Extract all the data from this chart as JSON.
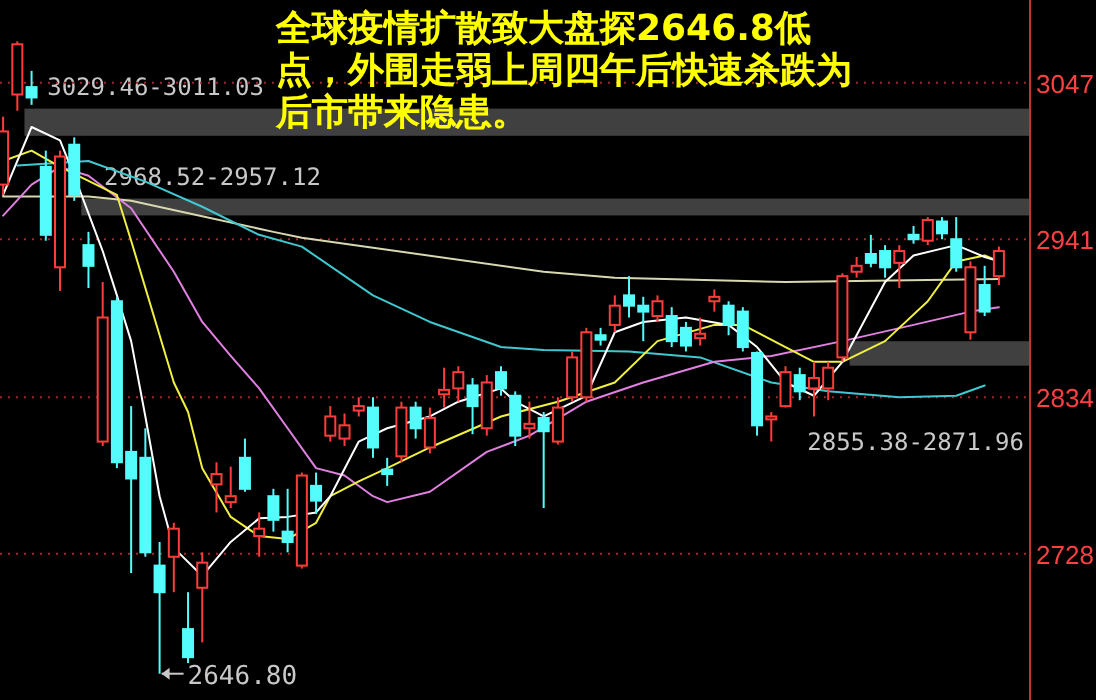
{
  "chart_data": {
    "type": "candlestick",
    "categories": [
      null,
      null,
      null,
      null,
      null,
      null,
      null,
      null,
      null,
      null,
      null,
      null,
      null,
      null,
      null,
      null,
      null,
      null,
      null,
      null,
      null,
      null,
      null,
      null,
      null,
      null,
      null,
      null,
      null,
      null,
      null,
      null,
      null,
      null,
      null,
      null,
      null,
      null,
      null,
      null,
      null,
      null,
      null,
      null,
      null,
      null,
      null,
      null,
      null,
      null,
      null,
      null,
      null,
      null,
      null,
      null,
      null,
      null,
      null,
      null,
      null,
      null,
      null,
      null,
      null,
      null,
      null,
      null,
      null,
      null,
      null
    ],
    "ohlc": [
      [
        2978,
        3024,
        2971,
        3014
      ],
      [
        3039,
        3075,
        3028,
        3073
      ],
      [
        3044,
        3055,
        3032,
        3037
      ],
      [
        2990,
        3001,
        2940,
        2944
      ],
      [
        2922,
        3001,
        2906,
        2997
      ],
      [
        3005,
        3010,
        2967,
        2971
      ],
      [
        2937,
        2946,
        2908,
        2923
      ],
      [
        2804,
        2912,
        2801,
        2888
      ],
      [
        2899,
        2902,
        2786,
        2790
      ],
      [
        2797,
        2828,
        2715,
        2779
      ],
      [
        2793,
        2813,
        2726,
        2729
      ],
      [
        2720,
        2736,
        2646.8,
        2702
      ],
      [
        2726,
        2749,
        2702,
        2745
      ],
      [
        2677,
        2702,
        2654,
        2658
      ],
      [
        2705,
        2729,
        2668,
        2722
      ],
      [
        2775,
        2790,
        2756,
        2782
      ],
      [
        2763,
        2787,
        2759,
        2767
      ],
      [
        2793,
        2806,
        2770,
        2772
      ],
      [
        2740,
        2756,
        2726,
        2745
      ],
      [
        2767,
        2772,
        2743,
        2751
      ],
      [
        2743,
        2772,
        2729,
        2736
      ],
      [
        2720,
        2783,
        2718,
        2781
      ],
      [
        2774,
        2783,
        2755,
        2764
      ],
      [
        2808,
        2828,
        2804,
        2821
      ],
      [
        2806,
        2823,
        2801,
        2815
      ],
      [
        2825,
        2834,
        2821,
        2828
      ],
      [
        2827,
        2834,
        2793,
        2800
      ],
      [
        2785,
        2793,
        2774,
        2782
      ],
      [
        2794,
        2831,
        2790,
        2827
      ],
      [
        2827,
        2831,
        2806,
        2813
      ],
      [
        2800,
        2827,
        2796,
        2820
      ],
      [
        2836,
        2854,
        2827,
        2839
      ],
      [
        2840,
        2855,
        2831,
        2851
      ],
      [
        2842,
        2847,
        2809,
        2828
      ],
      [
        2813,
        2849,
        2808,
        2844
      ],
      [
        2851,
        2855,
        2835,
        2840
      ],
      [
        2835,
        2838,
        2801,
        2808
      ],
      [
        2813,
        2831,
        2806,
        2816
      ],
      [
        2820,
        2824,
        2759,
        2811
      ],
      [
        2804,
        2834,
        2802,
        2827
      ],
      [
        2834,
        2865,
        2831,
        2861
      ],
      [
        2834,
        2881,
        2831,
        2878
      ],
      [
        2876,
        2881,
        2869,
        2873
      ],
      [
        2883,
        2903,
        2878,
        2896
      ],
      [
        2903,
        2916,
        2888,
        2896
      ],
      [
        2896,
        2902,
        2872,
        2892
      ],
      [
        2889,
        2903,
        2885,
        2899
      ],
      [
        2889,
        2895,
        2868,
        2872
      ],
      [
        2881,
        2885,
        2865,
        2869
      ],
      [
        2874,
        2888,
        2869,
        2877
      ],
      [
        2899,
        2907,
        2892,
        2902
      ],
      [
        2896,
        2899,
        2876,
        2883
      ],
      [
        2892,
        2895,
        2865,
        2868
      ],
      [
        2864,
        2865,
        2808,
        2815
      ],
      [
        2819,
        2824,
        2804,
        2821
      ],
      [
        2828,
        2855,
        2827,
        2851
      ],
      [
        2849,
        2854,
        2832,
        2838
      ],
      [
        2840,
        2858,
        2821,
        2847
      ],
      [
        2840,
        2858,
        2832,
        2854
      ],
      [
        2861,
        2918,
        2858,
        2916
      ],
      [
        2919,
        2929,
        2915,
        2923
      ],
      [
        2931,
        2944,
        2922,
        2925
      ],
      [
        2933,
        2937,
        2915,
        2922
      ],
      [
        2925,
        2937,
        2908,
        2933
      ],
      [
        2944,
        2950,
        2938,
        2941
      ],
      [
        2940,
        2956,
        2937,
        2954
      ],
      [
        2953,
        2956,
        2941,
        2945
      ],
      [
        2941,
        2956,
        2919,
        2922
      ],
      [
        2878,
        2926,
        2873,
        2922
      ],
      [
        2910,
        2923,
        2889,
        2892
      ],
      [
        2916,
        2936,
        2910,
        2933
      ]
    ],
    "series": [
      {
        "type": "line",
        "color": "#d8d8b0",
        "values": [
          2970,
          null,
          null,
          null,
          null,
          null,
          2970,
          null,
          null,
          2967,
          null,
          null,
          null,
          null,
          null,
          null,
          null,
          null,
          null,
          2946,
          null,
          2942,
          null,
          null,
          null,
          null,
          null,
          null,
          null,
          null,
          null,
          null,
          null,
          null,
          null,
          null,
          null,
          null,
          2919,
          null,
          null,
          null,
          null,
          2915,
          null,
          null,
          null,
          null,
          null,
          null,
          null,
          null,
          null,
          null,
          null,
          2912,
          null,
          null,
          null,
          null,
          null,
          null,
          null,
          null,
          null,
          null,
          null,
          null,
          null,
          null,
          2914
        ]
      },
      {
        "type": "line",
        "color": "#40c8d0",
        "values": [
          null,
          2991,
          null,
          null,
          null,
          null,
          2994,
          null,
          null,
          null,
          2980,
          null,
          null,
          null,
          2963,
          null,
          null,
          null,
          2944,
          null,
          null,
          2936,
          null,
          null,
          null,
          null,
          2903,
          null,
          null,
          null,
          2885,
          null,
          null,
          null,
          null,
          2868,
          null,
          null,
          2866,
          null,
          null,
          null,
          null,
          null,
          2865,
          null,
          null,
          null,
          null,
          2861,
          null,
          null,
          null,
          null,
          2844,
          null,
          null,
          null,
          2838,
          null,
          null,
          null,
          null,
          2834,
          null,
          null,
          null,
          2835,
          null,
          2842,
          null
        ]
      },
      {
        "type": "line",
        "color": "#e080e0",
        "values": [
          2957,
          null,
          2978,
          null,
          2990,
          null,
          2984,
          null,
          null,
          2962,
          null,
          null,
          2919,
          null,
          2885,
          null,
          2862,
          null,
          2840,
          null,
          2813,
          null,
          2786,
          null,
          2781,
          null,
          2767,
          2763,
          null,
          null,
          2770,
          null,
          null,
          null,
          2797,
          null,
          null,
          2808,
          null,
          null,
          null,
          2831,
          null,
          null,
          null,
          2844,
          null,
          null,
          null,
          null,
          2858,
          null,
          null,
          null,
          2862,
          null,
          null,
          null,
          null,
          2872,
          null,
          null,
          null,
          null,
          2883,
          null,
          null,
          null,
          2892,
          null,
          2895
        ]
      },
      {
        "type": "line",
        "color": "#f0f040",
        "values": [
          2994,
          null,
          3001,
          null,
          2990,
          null,
          null,
          null,
          2971,
          2940,
          null,
          2876,
          2844,
          2824,
          2786,
          null,
          2753,
          null,
          2740,
          null,
          2738,
          null,
          2749,
          2767,
          null,
          2777,
          null,
          2786,
          null,
          null,
          2800,
          null,
          null,
          null,
          null,
          2821,
          null,
          null,
          null,
          2831,
          null,
          null,
          null,
          2844,
          null,
          null,
          2872,
          null,
          null,
          null,
          2883,
          null,
          2883,
          null,
          null,
          2868,
          null,
          2858,
          null,
          2858,
          null,
          null,
          2872,
          null,
          null,
          2899,
          null,
          2926,
          null,
          2930,
          2926
        ]
      },
      {
        "type": "line",
        "color": "#ffffff",
        "values": [
          2971,
          null,
          3017,
          null,
          3008,
          2984,
          null,
          2933,
          2903,
          2872,
          2821,
          2767,
          2732,
          null,
          2713,
          null,
          2736,
          null,
          2752,
          null,
          2753,
          null,
          2756,
          2767,
          null,
          2804,
          null,
          2813,
          null,
          null,
          2821,
          null,
          2831,
          null,
          null,
          2840,
          2831,
          null,
          2821,
          null,
          null,
          2835,
          null,
          2878,
          null,
          2885,
          null,
          null,
          2888,
          null,
          null,
          2883,
          null,
          2868,
          null,
          2844,
          null,
          2835,
          null,
          2858,
          null,
          null,
          2912,
          null,
          2930,
          null,
          null,
          2937,
          null,
          2929,
          2926
        ]
      }
    ],
    "ylim": [
      2629,
      3103
    ],
    "yticks": [
      3047,
      2941,
      2834,
      2728
    ],
    "grid": "y",
    "bands": [
      {
        "axis": "y",
        "from": 3011.03,
        "to": 3029.46,
        "label": "3029.46-3011.03",
        "color": "#404040"
      },
      {
        "axis": "y",
        "from": 2957.12,
        "to": 2968.52,
        "label": "2968.52-2957.12",
        "color": "#404040"
      },
      {
        "axis": "y",
        "from": 2855.38,
        "to": 2871.96,
        "label": "2855.38-2871.96",
        "color": "#404040"
      }
    ],
    "annotations": [
      "全球疫情扩散致大盘探2646.8低点，外围走弱上周四午后快速杀跌为后市带来隐患。",
      "2646.80"
    ]
  }
}
